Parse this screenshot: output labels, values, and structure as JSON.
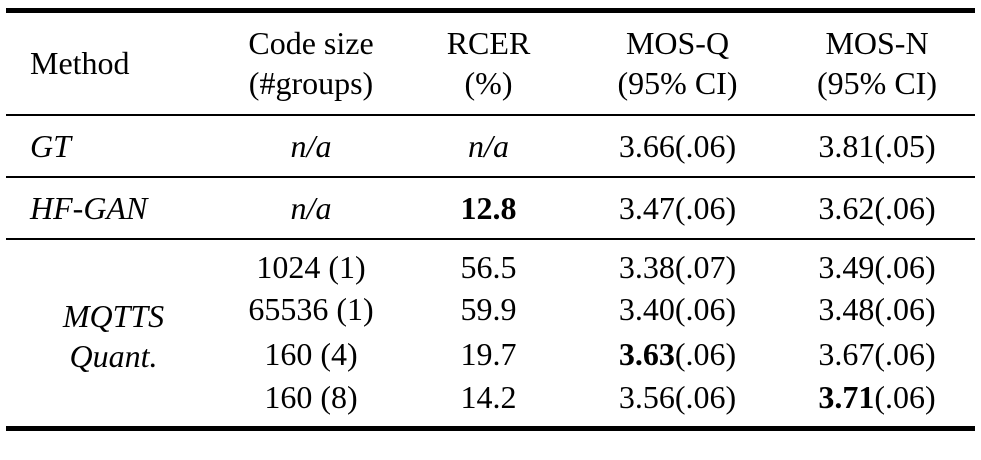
{
  "page": {
    "background_color": "#ffffff",
    "text_color": "#000000",
    "rule_color": "#000000"
  },
  "table": {
    "header": {
      "columns": [
        {
          "line1": "Method",
          "line2": ""
        },
        {
          "line1": "Code size",
          "line2": "(#groups)"
        },
        {
          "line1": "RCER",
          "line2": "(%)"
        },
        {
          "line1": "MOS-Q",
          "line2": "(95% CI)"
        },
        {
          "line1": "MOS-N",
          "line2": "(95% CI)"
        }
      ]
    },
    "sections": [
      {
        "method_lines": [
          "GT"
        ],
        "rows": [
          {
            "code_size": "n/a",
            "rcer": "n/a",
            "mos_q": "3.66",
            "mos_q_ci": "(.06)",
            "mos_n": "3.81",
            "mos_n_ci": "(.05)"
          }
        ]
      },
      {
        "method_lines": [
          "HF-GAN"
        ],
        "rows": [
          {
            "code_size": "n/a",
            "rcer": "12.8",
            "rcer_bold": true,
            "mos_q": "3.47",
            "mos_q_ci": "(.06)",
            "mos_n": "3.62",
            "mos_n_ci": "(.06)"
          }
        ]
      },
      {
        "method_lines": [
          "MQTTS",
          "Quant."
        ],
        "rows": [
          {
            "code_size": "1024 (1)",
            "rcer": "56.5",
            "mos_q": "3.38",
            "mos_q_ci": "(.07)",
            "mos_n": "3.49",
            "mos_n_ci": "(.06)"
          },
          {
            "code_size": "65536 (1)",
            "rcer": "59.9",
            "mos_q": "3.40",
            "mos_q_ci": "(.06)",
            "mos_n": "3.48",
            "mos_n_ci": "(.06)"
          },
          {
            "code_size": "160 (4)",
            "rcer": "19.7",
            "mos_q": "3.63",
            "mos_q_bold": true,
            "mos_q_ci": "(.06)",
            "mos_n": "3.67",
            "mos_n_ci": "(.06)"
          },
          {
            "code_size": "160 (8)",
            "rcer": "14.2",
            "mos_q": "3.56",
            "mos_q_ci": "(.06)",
            "mos_n": "3.71",
            "mos_n_bold": true,
            "mos_n_ci": "(.06)"
          }
        ]
      }
    ]
  }
}
